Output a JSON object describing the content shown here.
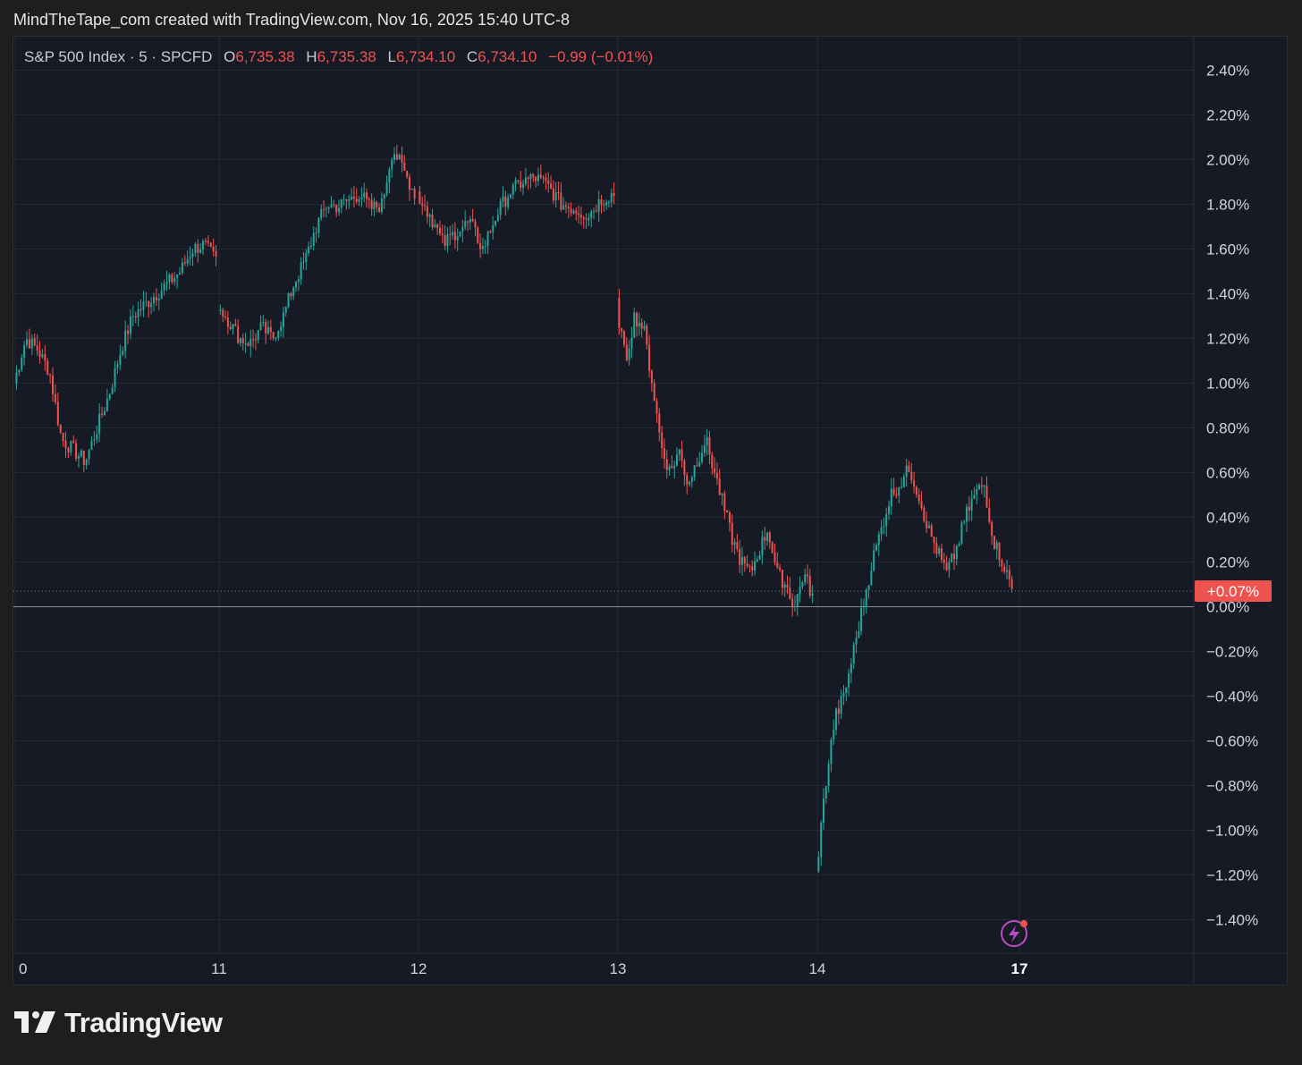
{
  "header": {
    "credit": "MindTheTape_com created with TradingView.com, Nov 16, 2025 15:40 UTC-8"
  },
  "legend": {
    "symbol": "S&P 500 Index · 5 · SPCFD",
    "open_label": "O",
    "open_value": "6,735.38",
    "high_label": "H",
    "high_value": "6,735.38",
    "low_label": "L",
    "low_value": "6,734.10",
    "close_label": "C",
    "close_value": "6,734.10",
    "change": "−0.99 (−0.01%)"
  },
  "last_value_badge": "+0.07%",
  "footer": {
    "brand": "TradingView"
  },
  "colors": {
    "up": "#26a69a",
    "down": "#ef5350",
    "background": "#161a25",
    "grid": "#242834",
    "axis_text": "#d1d4dc",
    "badge": "#ef5350"
  },
  "chart_data": {
    "type": "candlestick",
    "x_tick_labels": [
      "0",
      "11",
      "12",
      "13",
      "14",
      "17"
    ],
    "y_tick_labels": [
      "2.40%",
      "2.20%",
      "2.00%",
      "1.80%",
      "1.60%",
      "1.40%",
      "1.20%",
      "1.00%",
      "0.80%",
      "0.60%",
      "0.40%",
      "0.20%",
      "0.00%",
      "−0.20%",
      "−0.40%",
      "−0.60%",
      "−0.80%",
      "−1.00%",
      "−1.20%",
      "−1.40%"
    ],
    "y_unit": "percent change",
    "ylim": [
      -1.55,
      2.55
    ],
    "grid": true,
    "reference_line": 0.0,
    "last_value": 0.07,
    "sessions": [
      {
        "label": "0",
        "path": [
          1.0,
          1.2,
          1.15,
          1.05,
          0.75,
          0.7,
          0.65,
          0.8,
          0.95,
          1.15,
          1.3,
          1.35,
          1.4,
          1.45,
          1.5,
          1.6,
          1.62,
          1.55
        ]
      },
      {
        "label": "11",
        "path": [
          1.35,
          1.28,
          1.2,
          1.18,
          1.25,
          1.2,
          1.3,
          1.45,
          1.55,
          1.7,
          1.8,
          1.79,
          1.82,
          1.85,
          1.78,
          1.8,
          2.05,
          1.95,
          1.85
        ]
      },
      {
        "label": "12",
        "path": [
          1.85,
          1.75,
          1.62,
          1.68,
          1.72,
          1.6,
          1.75,
          1.85,
          1.9,
          1.92,
          1.88,
          1.8,
          1.78,
          1.75,
          1.82,
          1.85
        ]
      },
      {
        "label": "13",
        "path": [
          1.35,
          1.1,
          1.3,
          1.25,
          1.0,
          0.72,
          0.6,
          0.7,
          0.55,
          0.65,
          0.75,
          0.6,
          0.45,
          0.3,
          0.2,
          0.15,
          0.25,
          0.35,
          0.15,
          0.1,
          0.0,
          0.15,
          0.05
        ]
      },
      {
        "label": "14",
        "path": [
          -1.2,
          -0.8,
          -0.5,
          -0.4,
          -0.2,
          0.0,
          0.2,
          0.35,
          0.5,
          0.55,
          0.62,
          0.5,
          0.35,
          0.25,
          0.15,
          0.25,
          0.4,
          0.5,
          0.55,
          0.3,
          0.2,
          0.08
        ]
      }
    ]
  }
}
